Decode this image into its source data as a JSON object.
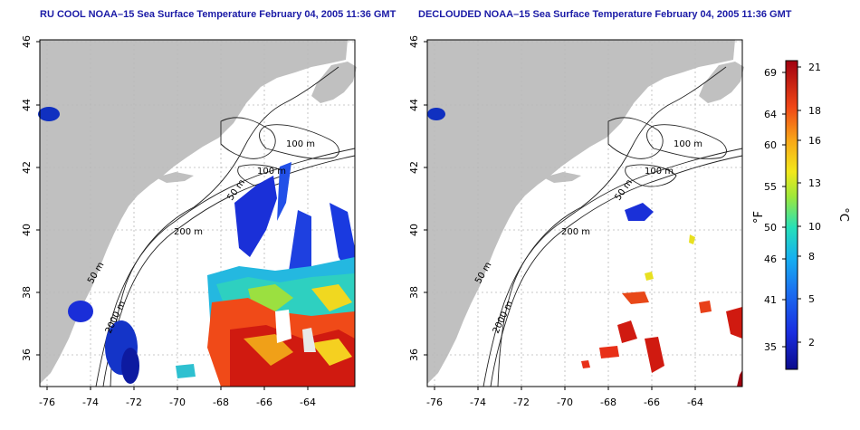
{
  "left_panel": {
    "title": "RU COOL NOAA–15 Sea Surface Temperature February 04, 2005 11:36 GMT"
  },
  "right_panel": {
    "title": "DECLOUDED NOAA–15 Sea Surface Temperature February 04, 2005 11:36 GMT"
  },
  "axes": {
    "x_ticks": [
      "-76",
      "-74",
      "-72",
      "-70",
      "-68",
      "-66",
      "-64"
    ],
    "y_ticks": [
      "36",
      "38",
      "40",
      "42",
      "44",
      "46"
    ]
  },
  "contour_labels": {
    "m100": "100 m",
    "m200": "200 m",
    "m50": "50 m",
    "m2000": "2000 m"
  },
  "colorbar": {
    "f_label": "°F",
    "c_label": "°C",
    "f_ticks": [
      "69",
      "64",
      "60",
      "55",
      "50",
      "46",
      "41",
      "35"
    ],
    "c_ticks": [
      "21",
      "18",
      "16",
      "13",
      "10",
      "8",
      "5",
      "2"
    ]
  },
  "colors": {
    "land": "#c0c0c0",
    "ocean": "#ffffff",
    "title": "#1a1aa6"
  }
}
